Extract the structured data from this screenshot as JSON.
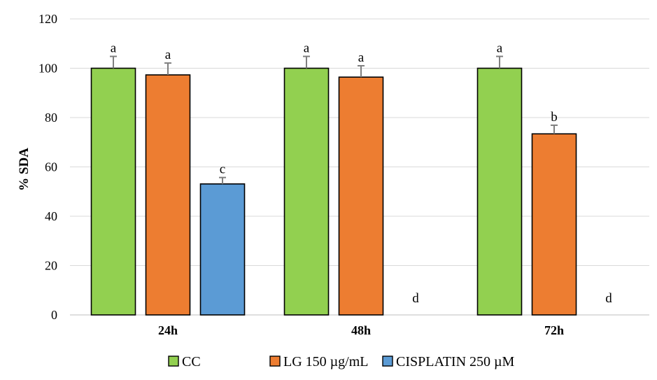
{
  "chart_data": {
    "type": "bar",
    "title": "",
    "xlabel": "",
    "ylabel": "% SDA",
    "ylim": [
      0,
      120
    ],
    "yticks": [
      0,
      20,
      40,
      60,
      80,
      100,
      120
    ],
    "grid": true,
    "legend_position": "bottom",
    "categories": [
      "24h",
      "48h",
      "72h"
    ],
    "series": [
      {
        "name": "CC",
        "color": "#92d050",
        "values": [
          100,
          100,
          100
        ],
        "errors": [
          4.8,
          4.8,
          4.8
        ],
        "labels": [
          "a",
          "a",
          "a"
        ]
      },
      {
        "name": "LG 150 µg/mL",
        "color": "#ed7d31",
        "values": [
          97.3,
          96.4,
          73.4
        ],
        "errors": [
          4.8,
          4.6,
          3.5
        ],
        "labels": [
          "a",
          "a",
          "b"
        ]
      },
      {
        "name": "CISPLATIN 250 µM",
        "color": "#5b9bd5",
        "values": [
          53.1,
          0,
          0
        ],
        "errors": [
          2.6,
          0,
          0
        ],
        "labels": [
          "c",
          "d",
          "d"
        ]
      }
    ]
  }
}
